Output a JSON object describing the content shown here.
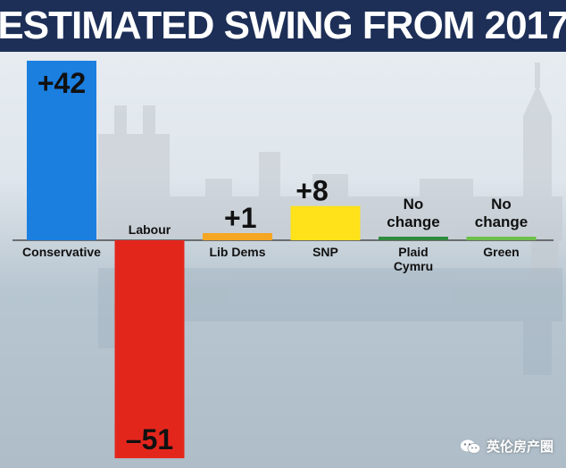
{
  "header": {
    "title": "ESTIMATED SWING FROM 2017"
  },
  "watermark": {
    "text": "英伦房产圈",
    "icon": "wechat-icon"
  },
  "colors": {
    "header_bg": "#1d2f57",
    "baseline": "#333333"
  },
  "chart_data": {
    "type": "bar",
    "title": "ESTIMATED SWING FROM 2017",
    "xlabel": "",
    "ylabel": "",
    "ylim": [
      -51,
      42
    ],
    "grid": false,
    "categories": [
      "Conservative",
      "Labour",
      "Lib Dems",
      "SNP",
      "Plaid Cymru",
      "Green"
    ],
    "values": [
      42,
      -51,
      1,
      8,
      0,
      0
    ],
    "value_labels": [
      "+42",
      "–51",
      "+1",
      "+8",
      "No change",
      "No change"
    ],
    "colors": [
      "#1b7fe0",
      "#e3261c",
      "#f5a623",
      "#ffe21a",
      "#2e8b3e",
      "#6cc04a"
    ]
  }
}
